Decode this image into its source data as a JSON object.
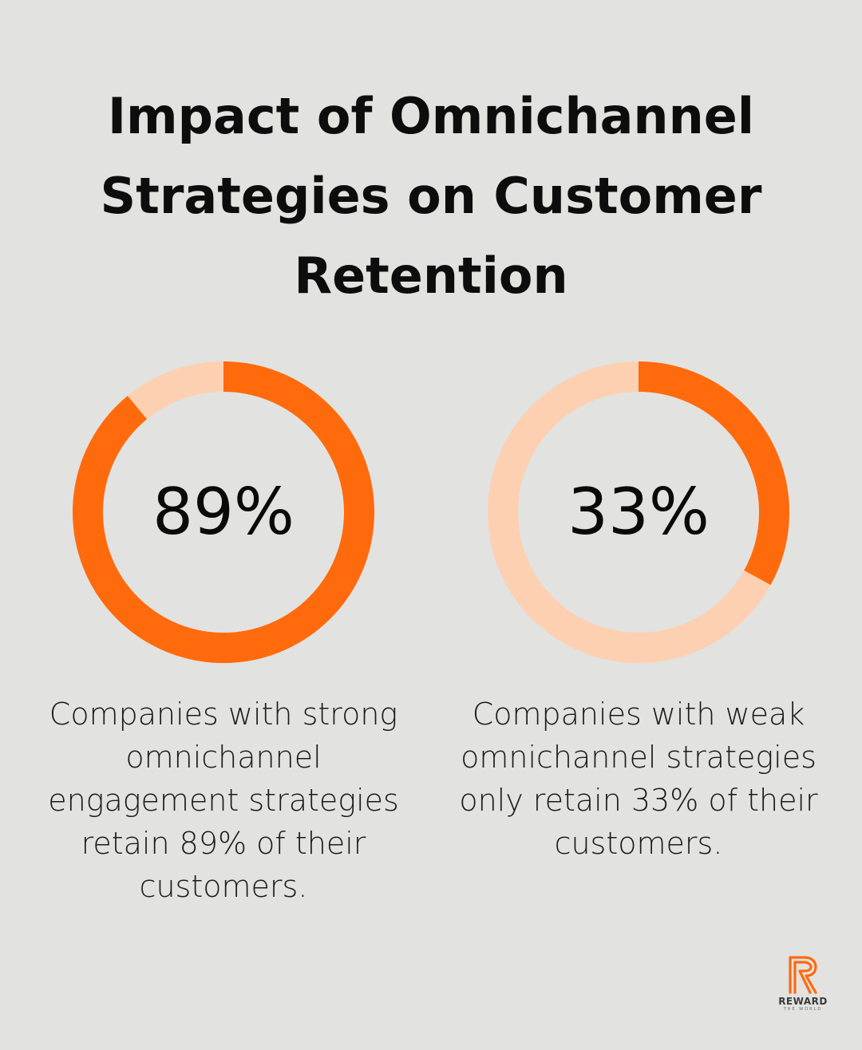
{
  "title": "Impact of Omnichannel Strategies on Customer Retention",
  "colors": {
    "background": "#e2e2e0",
    "accent": "#ff6a0d",
    "track": "#fdd0b1"
  },
  "chart_data": [
    {
      "type": "pie",
      "variant": "donut",
      "value_label": "89%",
      "value": 89,
      "max": 100,
      "caption": "Companies with strong omnichannel engagement strategies retain 89% of their customers."
    },
    {
      "type": "pie",
      "variant": "donut",
      "value_label": "33%",
      "value": 33,
      "max": 100,
      "caption": "Companies with weak omnichannel strategies only retain 33% of their customers."
    }
  ],
  "logo": {
    "icon": "reward-logo-r-icon",
    "text": "REWARD",
    "subtext": "THE WORLD"
  }
}
